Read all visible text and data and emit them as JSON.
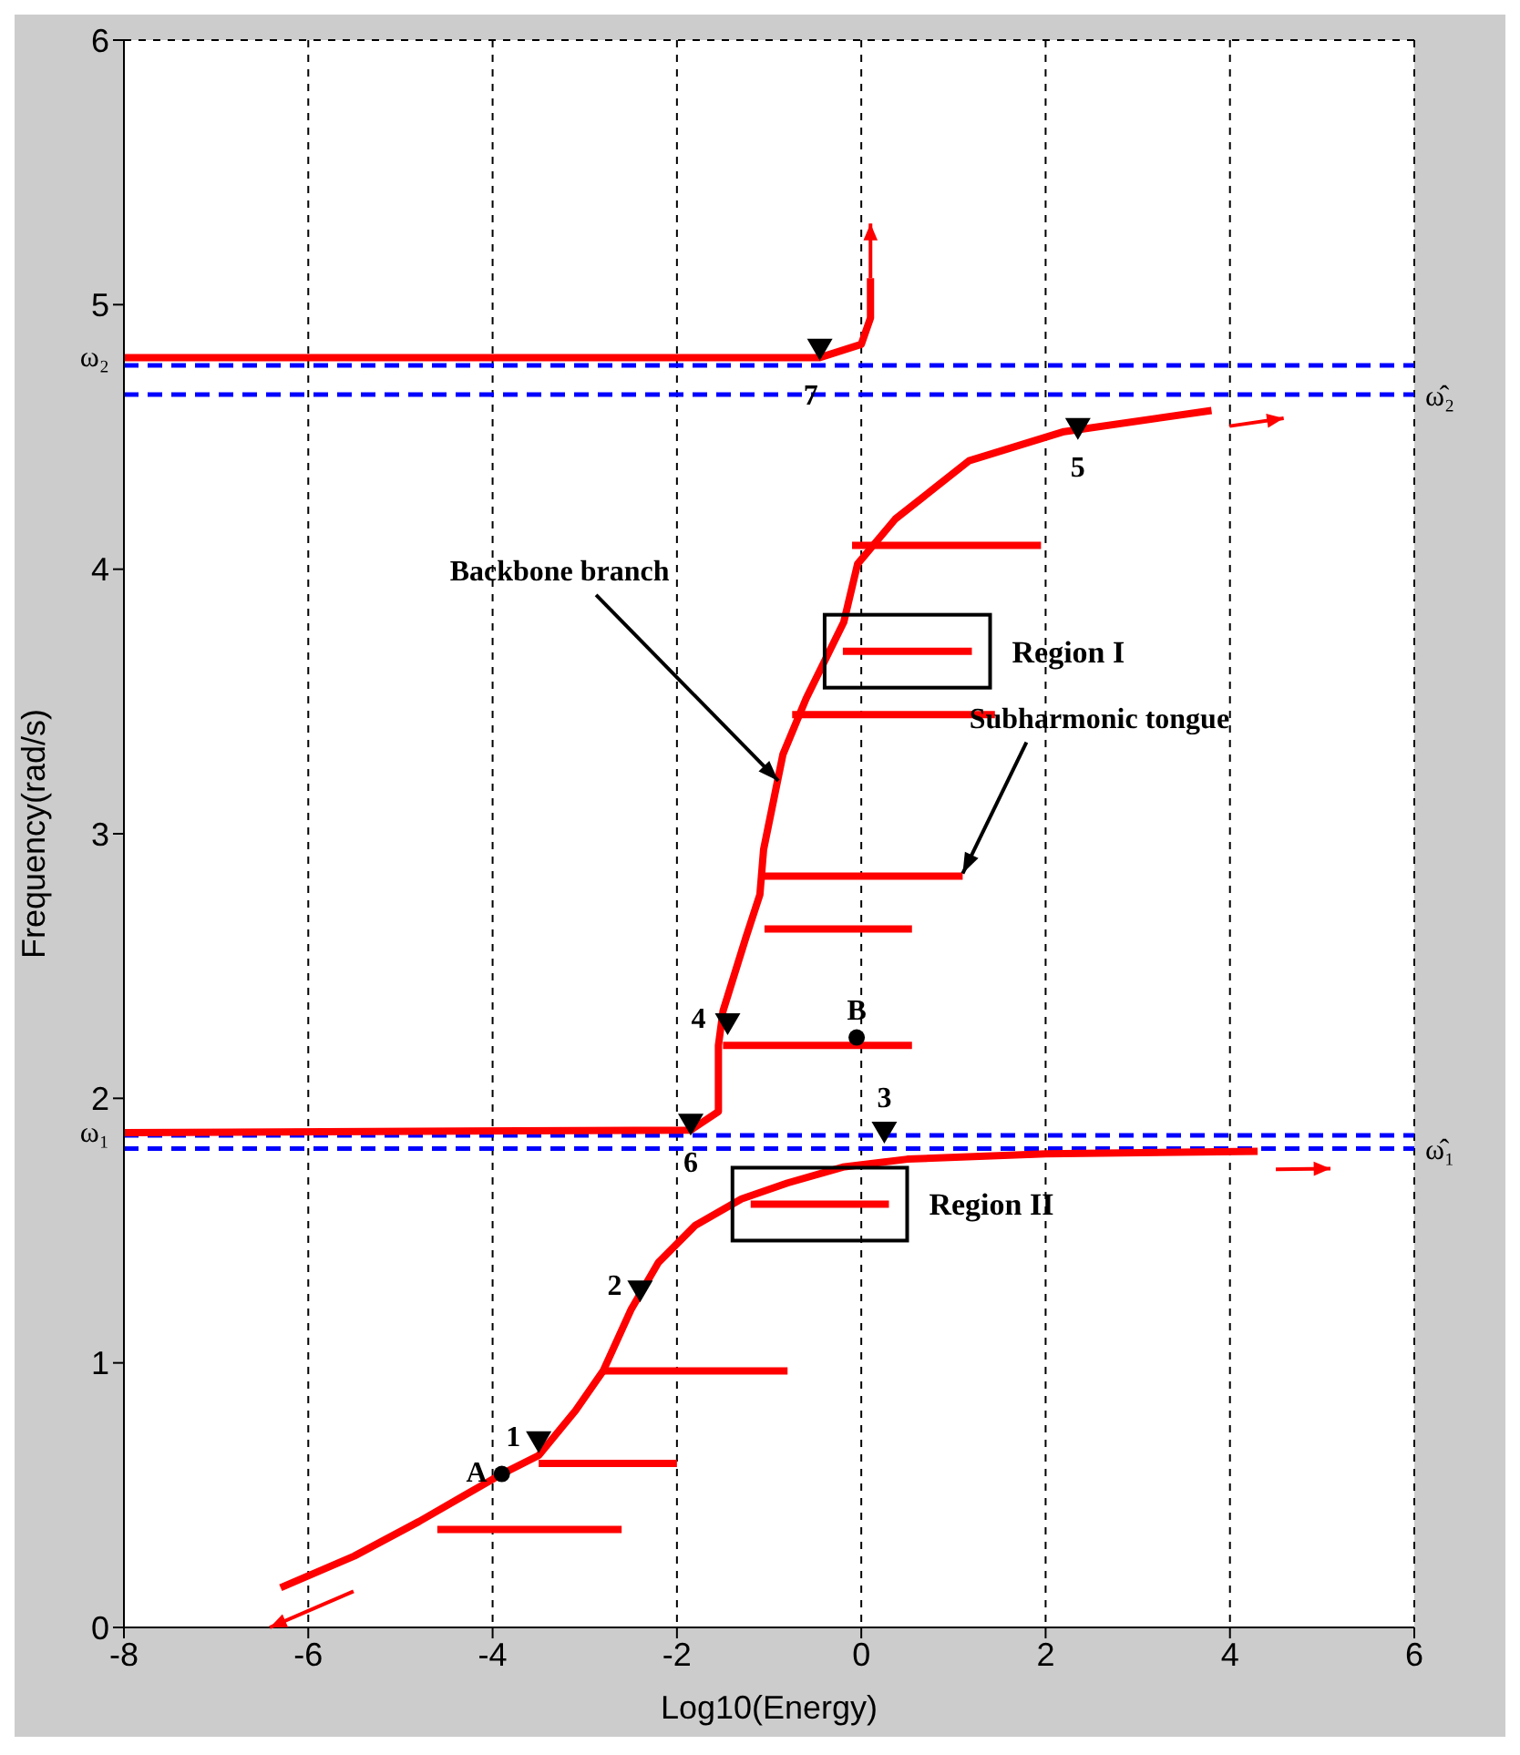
{
  "chart_data": {
    "type": "line",
    "xlabel": "Log10(Energy)",
    "ylabel": "Frequency(rad/s)",
    "xlim": [
      -8,
      6
    ],
    "ylim": [
      0,
      6
    ],
    "xticks": [
      -8,
      -6,
      -4,
      -2,
      0,
      2,
      4,
      6
    ],
    "yticks": [
      0,
      1,
      2,
      3,
      4,
      5,
      6
    ],
    "grid": true,
    "line_style": "solid",
    "series": [
      {
        "color": "#ff0000",
        "x": [
          -6.3,
          -5.5,
          -4.8,
          -4.3,
          -3.9,
          -3.5,
          -3.1,
          -2.8,
          -2.5,
          -2.2,
          -1.8,
          -1.3,
          -0.8,
          -0.2,
          0.5,
          2,
          4.3
        ],
        "values": [
          0.15,
          0.27,
          0.4,
          0.5,
          0.58,
          0.65,
          0.82,
          0.97,
          1.2,
          1.38,
          1.52,
          1.62,
          1.68,
          1.74,
          1.77,
          1.79,
          1.8
        ]
      },
      {
        "type": "line",
        "color": "#ff0000",
        "x": [
          -8,
          -1.85,
          -1.55,
          -1.55,
          -1.5,
          -1.25,
          -1.1,
          -1.06,
          -0.85,
          -0.6,
          -0.19,
          -0.04,
          0.37,
          1.17,
          2.2,
          3.8
        ],
        "values": [
          1.87,
          1.88,
          1.95,
          2.2,
          2.33,
          2.61,
          2.77,
          2.94,
          3.3,
          3.51,
          3.8,
          4.02,
          4.19,
          4.41,
          4.52,
          4.6
        ]
      },
      {
        "type": "line",
        "color": "#ff0000",
        "x": [
          -8,
          -0.45,
          0,
          0.1,
          0.1
        ],
        "values": [
          4.8,
          4.8,
          4.85,
          4.95,
          5.1
        ]
      },
      {
        "type": "line",
        "color": "#ff0000",
        "x": [
          -4.6,
          -2.6
        ],
        "values": [
          0.37,
          0.37
        ]
      },
      {
        "type": "line",
        "color": "#ff0000",
        "x": [
          -3.5,
          -2.0
        ],
        "values": [
          0.62,
          0.62
        ]
      },
      {
        "type": "line",
        "color": "#ff0000",
        "x": [
          -2.8,
          -0.8
        ],
        "values": [
          0.97,
          0.97
        ]
      },
      {
        "type": "line",
        "color": "#ff0000",
        "x": [
          -1.2,
          0.3
        ],
        "values": [
          1.6,
          1.6
        ]
      },
      {
        "type": "line",
        "color": "#ff0000",
        "x": [
          -1.5,
          0.55
        ],
        "values": [
          2.2,
          2.2
        ]
      },
      {
        "type": "line",
        "color": "#ff0000",
        "x": [
          -1.05,
          0.55
        ],
        "values": [
          2.64,
          2.64
        ]
      },
      {
        "type": "line",
        "color": "#ff0000",
        "x": [
          -1.1,
          1.1
        ],
        "values": [
          2.84,
          2.84
        ]
      },
      {
        "type": "line",
        "color": "#ff0000",
        "x": [
          -0.75,
          1.45
        ],
        "values": [
          3.45,
          3.45
        ]
      },
      {
        "type": "line",
        "color": "#ff0000",
        "x": [
          -0.2,
          1.2
        ],
        "values": [
          3.69,
          3.69
        ]
      },
      {
        "type": "line",
        "color": "#ff0000",
        "x": [
          -0.1,
          1.95
        ],
        "values": [
          4.09,
          4.09
        ]
      },
      {
        "type": "scatter",
        "marker": "circle",
        "color": "#000000",
        "x": [
          -3.9,
          -0.05
        ],
        "values": [
          0.58,
          2.23
        ]
      },
      {
        "type": "scatter",
        "marker": "triangle",
        "color": "#000000",
        "x": [
          -3.5,
          -2.4,
          0.25,
          -1.45,
          2.35,
          -1.85,
          -0.45
        ],
        "values": [
          0.7,
          1.27,
          1.87,
          2.28,
          4.53,
          1.9,
          4.83
        ]
      }
    ],
    "ref_lines": [
      {
        "axis": "y",
        "value": 1.81,
        "label": "ω̂₁",
        "color": "#0000ff",
        "line_style": "dashed"
      },
      {
        "axis": "y",
        "value": 4.66,
        "label": "ω̂₂",
        "color": "#0000ff",
        "line_style": "dashed"
      },
      {
        "axis": "y",
        "value": 1.86,
        "label": null,
        "color": "#0000ff",
        "line_style": "dashed"
      },
      {
        "axis": "y",
        "value": 4.77,
        "label": null,
        "color": "#0000ff",
        "line_style": "dashed"
      }
    ],
    "annotations": [
      {
        "text": "Backbone branch",
        "x": -0.9,
        "y": 3.2
      },
      {
        "text": "Subharmonic tongue",
        "x": 1.1,
        "y": 2.85
      },
      "Region I",
      "Region II",
      {
        "text": "A",
        "x": -3.9,
        "y": 0.58
      },
      {
        "text": "B",
        "x": -0.05,
        "y": 2.23
      },
      {
        "text": "1",
        "x": -3.5,
        "y": 0.7
      },
      {
        "text": "2",
        "x": -2.4,
        "y": 1.27
      },
      {
        "text": "3",
        "x": 0.25,
        "y": 1.87
      },
      {
        "text": "4",
        "x": -1.45,
        "y": 2.28
      },
      {
        "text": "5",
        "x": 2.35,
        "y": 4.53
      },
      {
        "text": "6",
        "x": -1.85,
        "y": 1.9
      },
      {
        "text": "7",
        "x": -0.45,
        "y": 4.83
      },
      {
        "text": "ω₁",
        "x": -8,
        "y": 1.87
      },
      {
        "text": "ω₂",
        "x": -8,
        "y": 4.8
      }
    ]
  }
}
